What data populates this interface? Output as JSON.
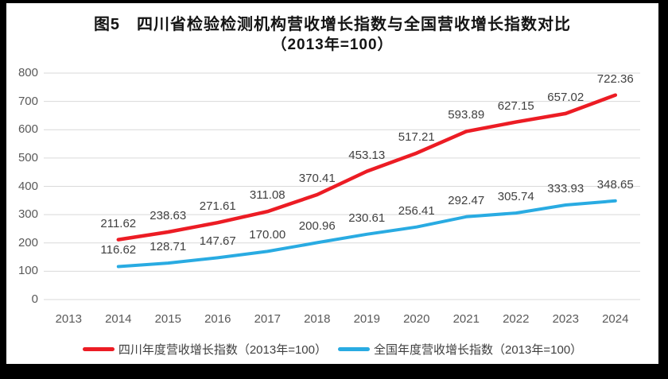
{
  "title": {
    "line1": "图5　四川省检验检测机构营收增长指数与全国营收增长指数对比",
    "line2": "（2013年=100）"
  },
  "chart_data": {
    "type": "line",
    "title": "图5 四川省检验检测机构营收增长指数与全国营收增长指数对比（2013年=100）",
    "categories": [
      "2013",
      "2014",
      "2015",
      "2016",
      "2017",
      "2018",
      "2019",
      "2020",
      "2021",
      "2022",
      "2023",
      "2024"
    ],
    "ylim": [
      0,
      800
    ],
    "yticks": [
      0,
      100,
      200,
      300,
      400,
      500,
      600,
      700,
      800
    ],
    "grid": "horizontal",
    "gridline_color": "#d9d9d9",
    "legend_position": "bottom",
    "series": [
      {
        "name": "四川年度营收增长指数（2013年=100）",
        "color": "#ec1c24",
        "stroke_width": 4.5,
        "x": [
          "2014",
          "2015",
          "2016",
          "2017",
          "2018",
          "2019",
          "2020",
          "2021",
          "2022",
          "2023",
          "2024"
        ],
        "values": [
          211.62,
          238.63,
          271.61,
          311.08,
          370.41,
          453.13,
          517.21,
          593.89,
          627.15,
          657.02,
          722.36
        ],
        "labels": [
          "211.62",
          "238.63",
          "271.61",
          "311.08",
          "370.41",
          "453.13",
          "517.21",
          "593.89",
          "627.15",
          "657.02",
          "722.36"
        ]
      },
      {
        "name": "全国年度营收增长指数（2013年=100）",
        "color": "#29abe2",
        "stroke_width": 4,
        "x": [
          "2014",
          "2015",
          "2016",
          "2017",
          "2018",
          "2019",
          "2020",
          "2021",
          "2022",
          "2023",
          "2024"
        ],
        "values": [
          116.62,
          128.71,
          147.67,
          170.0,
          200.96,
          230.61,
          256.41,
          292.47,
          305.74,
          333.93,
          348.65
        ],
        "labels": [
          "116.62",
          "128.71",
          "147.67",
          "170.00",
          "200.96",
          "230.61",
          "256.41",
          "292.47",
          "305.74",
          "333.93",
          "348.65"
        ]
      }
    ]
  }
}
